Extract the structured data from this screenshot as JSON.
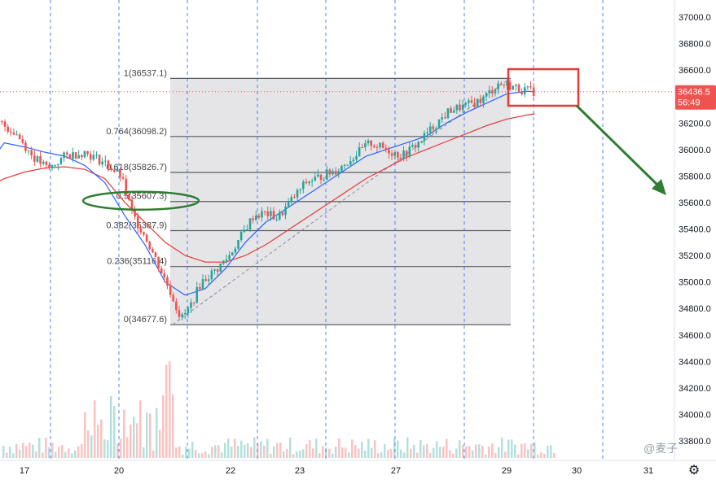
{
  "chart_data": {
    "type": "candlestick",
    "symbol_price": "36436.5",
    "countdown": "56:49",
    "y_axis": {
      "ticks": [
        "37000.0",
        "36800.0",
        "36600.0",
        "36400.0",
        "36200.0",
        "36000.0",
        "35800.0",
        "35600.0",
        "35400.0",
        "35200.0",
        "35000.0",
        "34800.0",
        "34600.0",
        "34400.0",
        "34200.0",
        "34000.0",
        "33800.0"
      ],
      "range": [
        33600,
        37100
      ]
    },
    "x_axis": {
      "ticks": [
        "17",
        "20",
        "22",
        "23",
        "27",
        "29",
        "30",
        "31"
      ],
      "range_days": [
        "16",
        "31"
      ]
    },
    "fibonacci": {
      "start_price": 34677.6,
      "end_price": 36537.1,
      "levels": [
        {
          "ratio": "1",
          "price": "36537.1",
          "label": "1(36537.1)"
        },
        {
          "ratio": "0.764",
          "price": "36098.2",
          "label": "0.764(36098.2)"
        },
        {
          "ratio": "0.618",
          "price": "35826.7",
          "label": "0.618(35826.7)"
        },
        {
          "ratio": "0.5",
          "price": "35607.3",
          "label": "0.5(35607.3)"
        },
        {
          "ratio": "0.382",
          "price": "35387.9",
          "label": "0.382(35387.9)"
        },
        {
          "ratio": "0.236",
          "price": "35116.4",
          "label": "0.236(35116.4)"
        },
        {
          "ratio": "0",
          "price": "34677.6",
          "label": "0(34677.6)"
        }
      ]
    },
    "price_path": [
      [
        16.0,
        36150
      ],
      [
        16.4,
        36200
      ],
      [
        16.8,
        36120
      ],
      [
        17.2,
        35950
      ],
      [
        17.6,
        35850
      ],
      [
        18.0,
        35950
      ],
      [
        18.5,
        35980
      ],
      [
        19.0,
        35900
      ],
      [
        19.4,
        35800
      ],
      [
        19.7,
        35500
      ],
      [
        20.0,
        35350
      ],
      [
        20.3,
        35150
      ],
      [
        20.6,
        34950
      ],
      [
        20.9,
        34720
      ],
      [
        21.1,
        34800
      ],
      [
        21.4,
        35000
      ],
      [
        21.8,
        35100
      ],
      [
        22.1,
        35200
      ],
      [
        22.4,
        35350
      ],
      [
        22.7,
        35500
      ],
      [
        23.0,
        35520
      ],
      [
        23.3,
        35480
      ],
      [
        23.6,
        35600
      ],
      [
        24.0,
        35750
      ],
      [
        24.4,
        35800
      ],
      [
        24.8,
        35850
      ],
      [
        25.2,
        35950
      ],
      [
        25.6,
        36050
      ],
      [
        26.0,
        36000
      ],
      [
        26.4,
        35950
      ],
      [
        26.8,
        36050
      ],
      [
        27.2,
        36180
      ],
      [
        27.6,
        36300
      ],
      [
        28.0,
        36330
      ],
      [
        28.4,
        36380
      ],
      [
        28.8,
        36500
      ],
      [
        29.1,
        36480
      ],
      [
        29.4,
        36450
      ],
      [
        29.7,
        36436.5
      ]
    ],
    "ma_fast": [
      [
        16.0,
        35850
      ],
      [
        16.5,
        36050
      ],
      [
        17.0,
        36020
      ],
      [
        17.5,
        35980
      ],
      [
        18.0,
        35950
      ],
      [
        18.5,
        35880
      ],
      [
        19.0,
        35750
      ],
      [
        19.5,
        35500
      ],
      [
        20.0,
        35280
      ],
      [
        20.5,
        35000
      ],
      [
        21.0,
        34900
      ],
      [
        21.5,
        34950
      ],
      [
        22.0,
        35100
      ],
      [
        22.5,
        35300
      ],
      [
        23.0,
        35450
      ],
      [
        23.5,
        35550
      ],
      [
        24.0,
        35650
      ],
      [
        24.5,
        35750
      ],
      [
        25.0,
        35850
      ],
      [
        25.5,
        35950
      ],
      [
        26.0,
        36000
      ],
      [
        26.5,
        36050
      ],
      [
        27.0,
        36100
      ],
      [
        27.5,
        36200
      ],
      [
        28.0,
        36280
      ],
      [
        28.5,
        36350
      ],
      [
        29.0,
        36420
      ],
      [
        29.5,
        36440
      ],
      [
        29.7,
        36436.5
      ]
    ],
    "ma_slow": [
      [
        16.0,
        35700
      ],
      [
        16.5,
        35780
      ],
      [
        17.0,
        35830
      ],
      [
        17.5,
        35860
      ],
      [
        18.0,
        35870
      ],
      [
        18.5,
        35850
      ],
      [
        19.0,
        35780
      ],
      [
        19.5,
        35600
      ],
      [
        20.0,
        35450
      ],
      [
        20.5,
        35300
      ],
      [
        21.0,
        35200
      ],
      [
        21.5,
        35150
      ],
      [
        22.0,
        35150
      ],
      [
        22.5,
        35200
      ],
      [
        23.0,
        35280
      ],
      [
        23.5,
        35380
      ],
      [
        24.0,
        35480
      ],
      [
        24.5,
        35580
      ],
      [
        25.0,
        35680
      ],
      [
        25.5,
        35780
      ],
      [
        26.0,
        35860
      ],
      [
        26.5,
        35940
      ],
      [
        27.0,
        36000
      ],
      [
        27.5,
        36060
      ],
      [
        28.0,
        36120
      ],
      [
        28.5,
        36180
      ],
      [
        29.0,
        36230
      ],
      [
        29.5,
        36260
      ],
      [
        29.7,
        36270
      ]
    ],
    "annotations": {
      "green_ellipse_on": "0.5(35607.3)",
      "red_box": "consolidation near top",
      "green_arrow": "projected decline"
    },
    "watermark": "@麦子"
  },
  "colors": {
    "up": "#26a69a",
    "down": "#ef5350",
    "ma_fast": "#2962ff",
    "ma_slow": "#e53935",
    "fib_fill": "#e0e1e4",
    "fib_line": "#5b5e66",
    "price_tag": "#ef5350",
    "annotation_green": "#2e7d32",
    "annotation_red": "#e53935",
    "separator": "#2962ff"
  },
  "icons": {
    "settings": "gear-icon"
  }
}
